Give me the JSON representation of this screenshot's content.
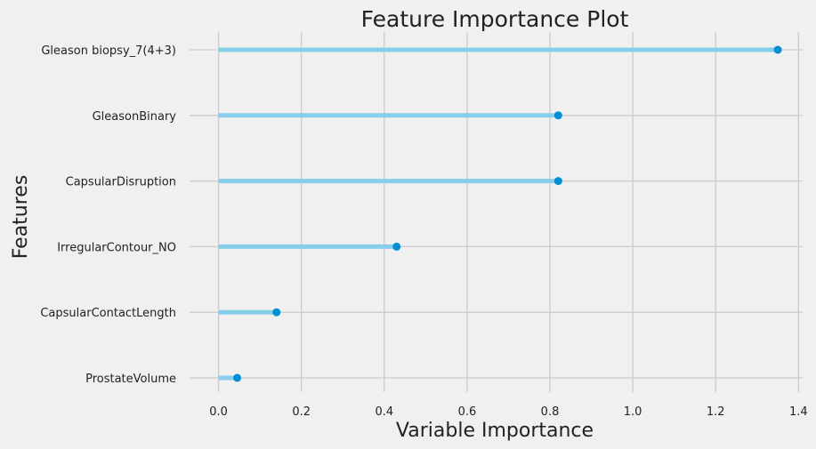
{
  "chart_data": {
    "type": "lollipop",
    "title": "Feature Importance Plot",
    "xlabel": "Variable Importance",
    "ylabel": "Features",
    "xlim": [
      -0.07,
      1.41
    ],
    "xticks": [
      "0.0",
      "0.2",
      "0.4",
      "0.6",
      "0.8",
      "1.0",
      "1.2",
      "1.4"
    ],
    "xtick_values": [
      0.0,
      0.2,
      0.4,
      0.6,
      0.8,
      1.0,
      1.2,
      1.4
    ],
    "grid": true,
    "categories": [
      "Gleason biopsy_7(4+3)",
      "GleasonBinary",
      "CapsularDisruption",
      "IrregularContour_NO",
      "CapsularContactLength",
      "ProstateVolume"
    ],
    "values": [
      1.35,
      0.82,
      0.82,
      0.43,
      0.14,
      0.045
    ]
  },
  "colors": {
    "background": "#f0f0f0",
    "grid": "#cbcbcb",
    "stem": "#87ceeb",
    "marker": "#008fd5",
    "text": "#222222"
  }
}
